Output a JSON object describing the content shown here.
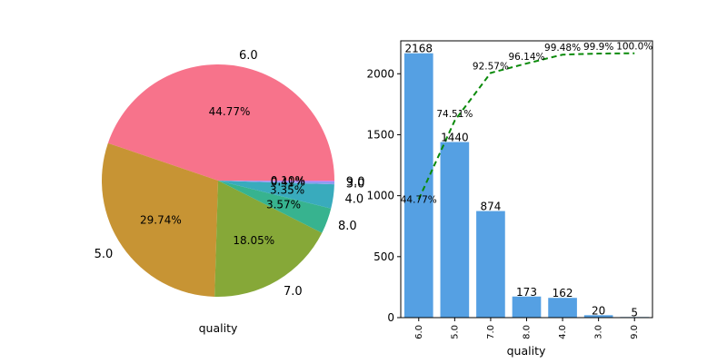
{
  "chart_data": [
    {
      "type": "pie",
      "xlabel": "quality",
      "labels": [
        "6.0",
        "5.0",
        "7.0",
        "8.0",
        "4.0",
        "3.0",
        "9.0"
      ],
      "values": [
        44.77,
        29.74,
        18.05,
        3.57,
        3.35,
        0.41,
        0.1
      ],
      "pct_labels": [
        "44.77%",
        "29.74%",
        "18.05%",
        "3.57%",
        "3.35%",
        "0.41%",
        "0.10%"
      ],
      "colors": [
        "#f7738b",
        "#c79434",
        "#86a838",
        "#37b38f",
        "#39abbd",
        "#8d9df0",
        "#f061e4"
      ]
    },
    {
      "type": "bar",
      "xlabel": "quality",
      "categories": [
        "6.0",
        "5.0",
        "7.0",
        "8.0",
        "4.0",
        "3.0",
        "9.0"
      ],
      "values": [
        2168,
        1440,
        874,
        173,
        162,
        20,
        5
      ],
      "value_labels": [
        "2168",
        "1440",
        "874",
        "173",
        "162",
        "20",
        "5"
      ],
      "ylim": [
        0,
        2270
      ],
      "yticks": [
        0,
        500,
        1000,
        1500,
        2000
      ],
      "bar_color": "#55a0e3",
      "cumulative": {
        "style": "dashed",
        "color": "#0a8a0a",
        "values": [
          44.77,
          74.51,
          92.57,
          96.14,
          99.48,
          99.9,
          100.0
        ],
        "labels": [
          "44.77%",
          "74.51%",
          "92.57%",
          "96.14%",
          "99.48%",
          "99.9%",
          "100.0%"
        ]
      }
    }
  ]
}
